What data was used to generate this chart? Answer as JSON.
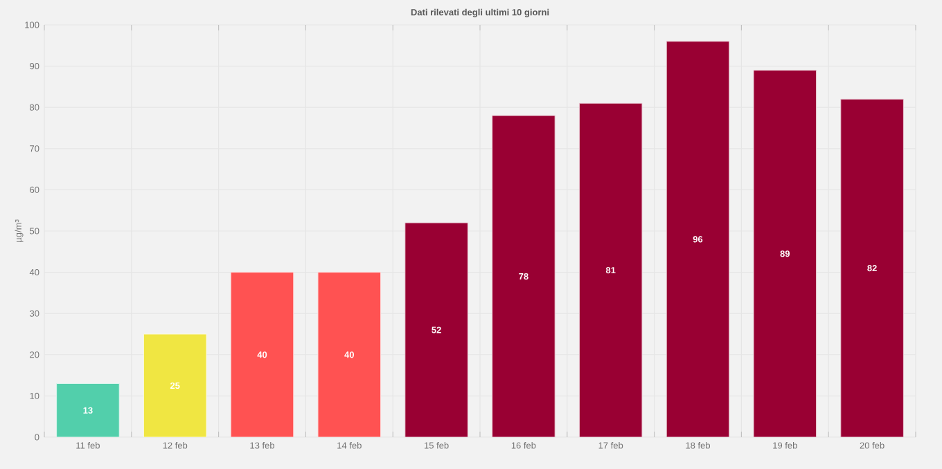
{
  "chart_data": {
    "type": "bar",
    "title": "Dati rilevati degli ultimi 10 giorni",
    "ylabel": "µg/m³",
    "categories": [
      "11 feb",
      "12 feb",
      "13 feb",
      "14 feb",
      "15 feb",
      "16 feb",
      "17 feb",
      "18 feb",
      "19 feb",
      "20 feb"
    ],
    "values": [
      13,
      25,
      40,
      40,
      52,
      78,
      81,
      96,
      89,
      82
    ],
    "colors": [
      "#52cfab",
      "#f0e642",
      "#ff5252",
      "#ff5252",
      "#990033",
      "#990033",
      "#990033",
      "#990033",
      "#990033",
      "#990033"
    ],
    "ylim": [
      0,
      100
    ],
    "yticks": [
      0,
      10,
      20,
      30,
      40,
      50,
      60,
      70,
      80,
      90,
      100
    ],
    "grid": true,
    "data_labels": true
  }
}
